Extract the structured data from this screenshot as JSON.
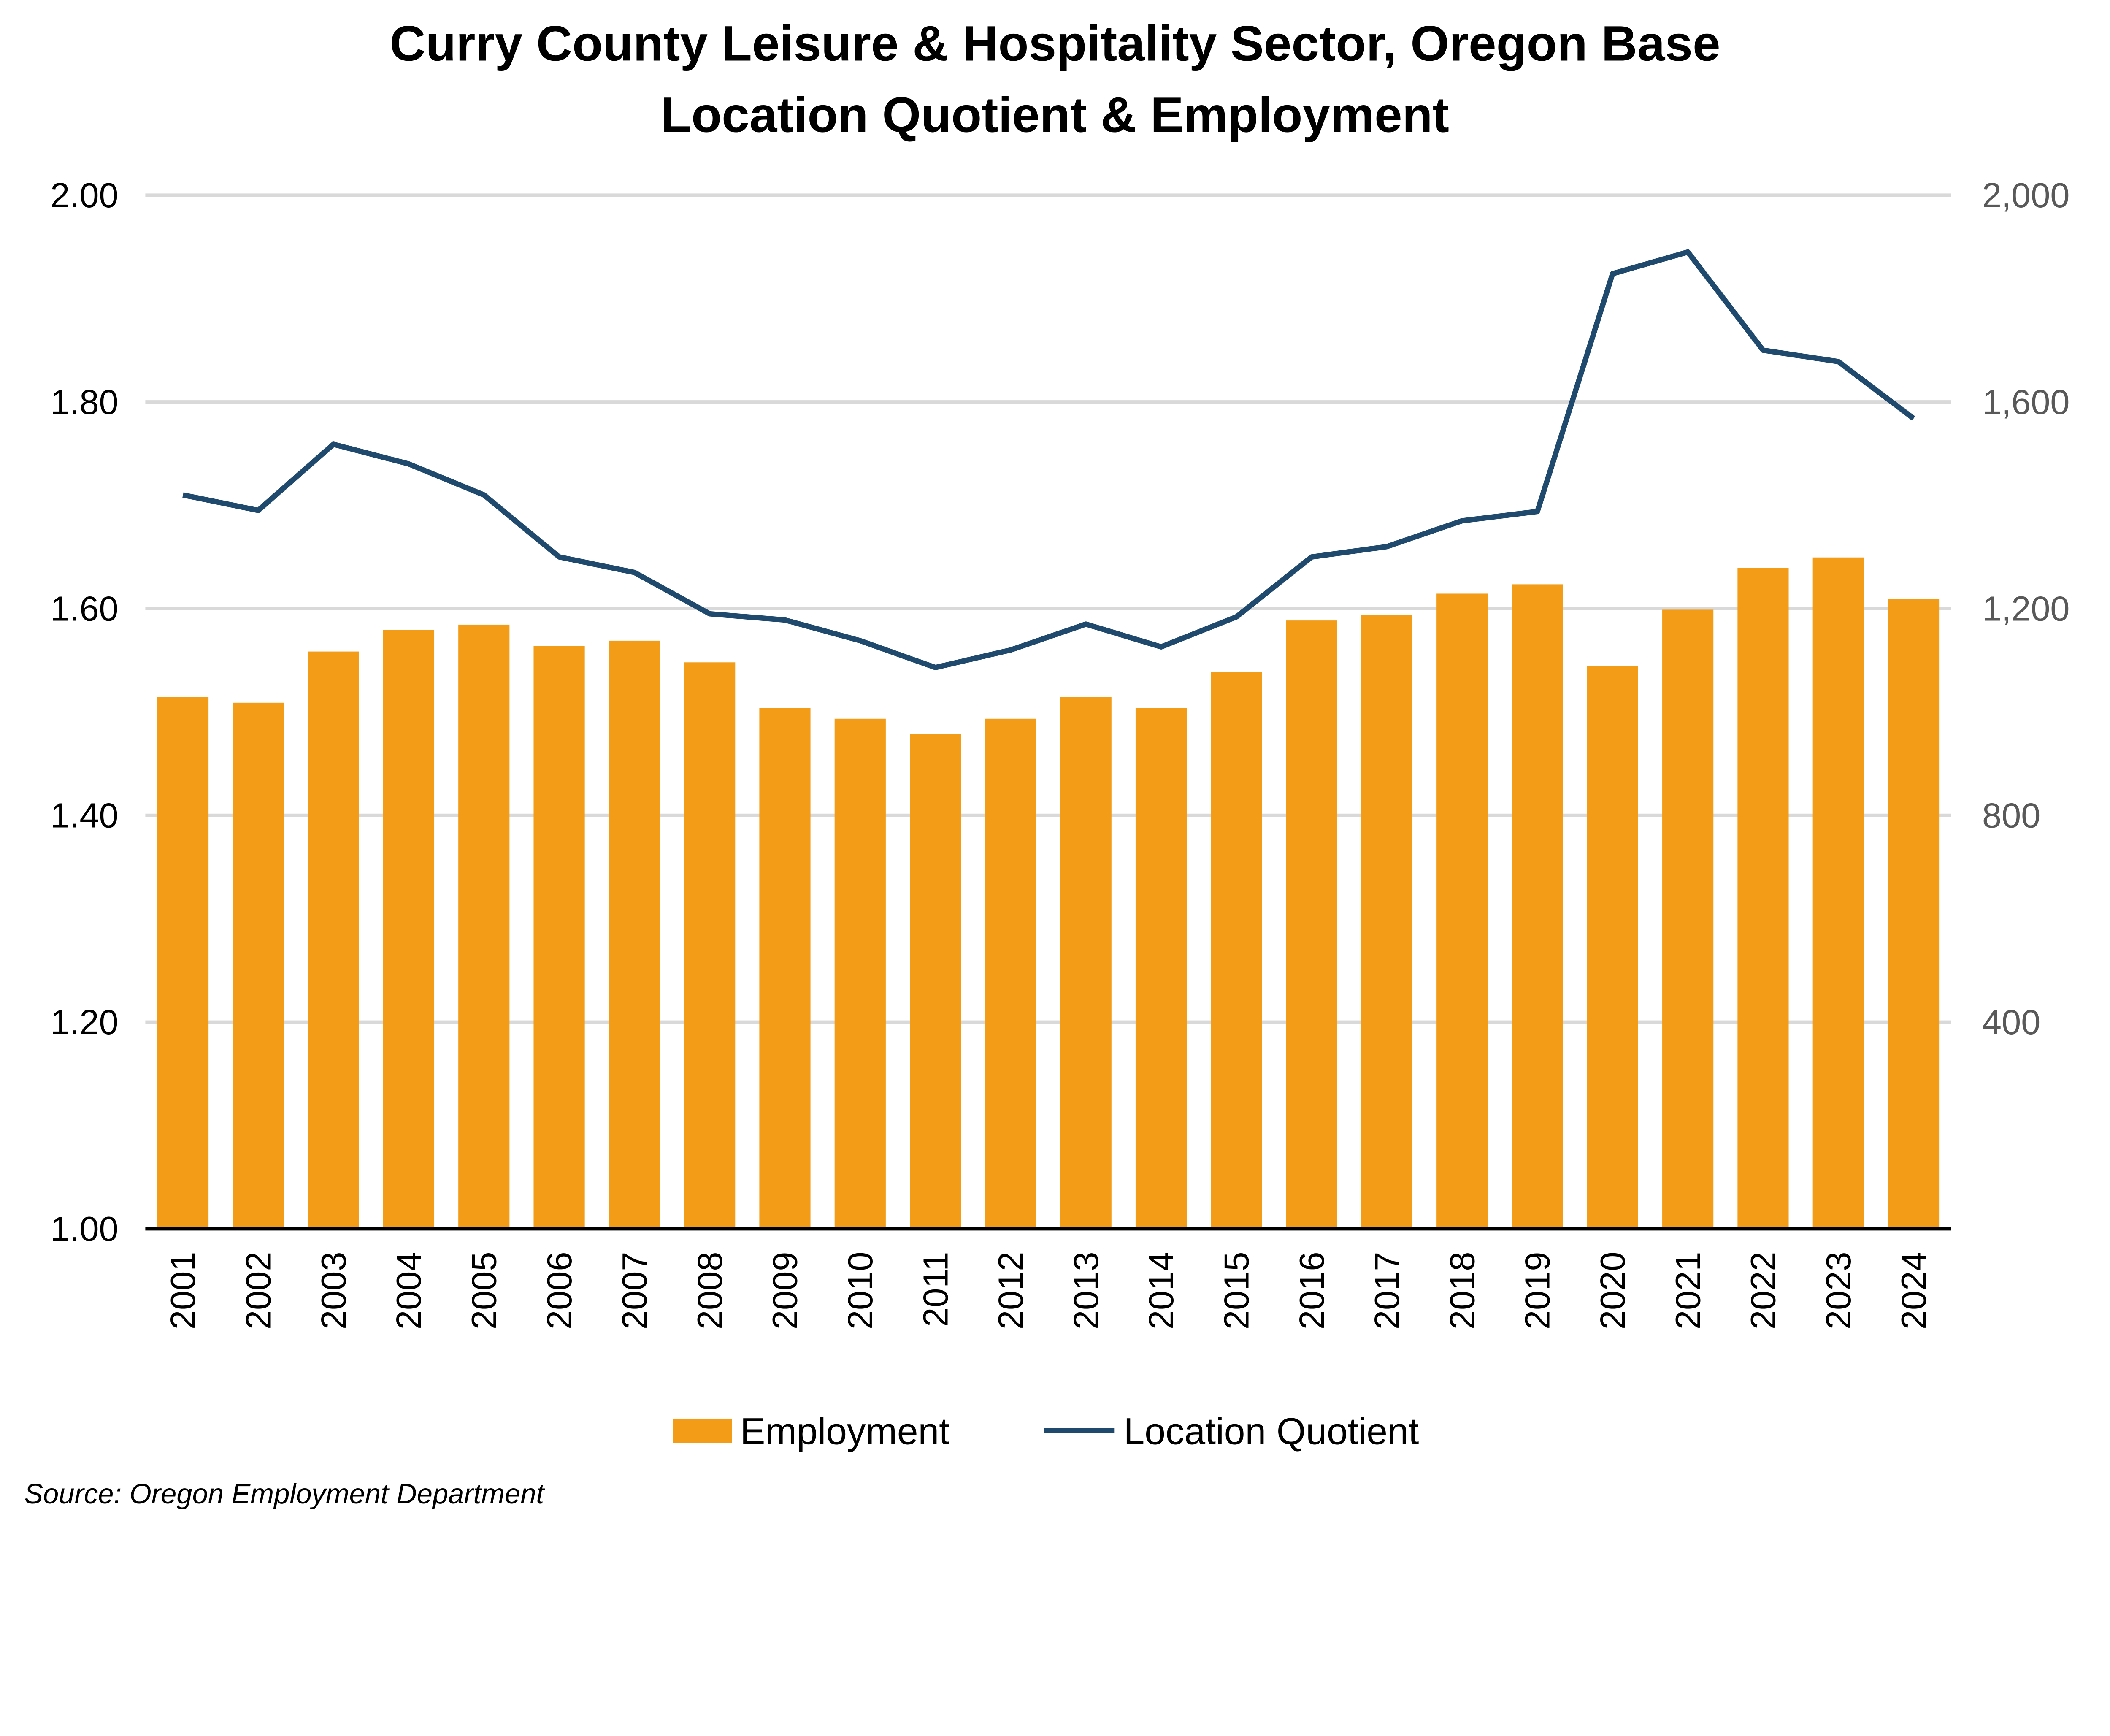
{
  "chart_data": {
    "type": "bar+line",
    "title_line1": "Curry County Leisure & Hospitality Sector, Oregon Base",
    "title_line2": "Location Quotient & Employment",
    "categories": [
      "2001",
      "2002",
      "2003",
      "2004",
      "2005",
      "2006",
      "2007",
      "2008",
      "2009",
      "2010",
      "2011",
      "2012",
      "2013",
      "2014",
      "2015",
      "2016",
      "2017",
      "2018",
      "2019",
      "2020",
      "2021",
      "2022",
      "2023",
      "2024"
    ],
    "series": [
      {
        "name": "Employment",
        "type": "bar",
        "axis": "right",
        "color": "#F39C18",
        "values": [
          1029,
          1018,
          1117,
          1159,
          1169,
          1128,
          1138,
          1096,
          1008,
          987,
          958,
          987,
          1029,
          1008,
          1078,
          1177,
          1187,
          1229,
          1247,
          1089,
          1198,
          1279,
          1299,
          1219
        ]
      },
      {
        "name": "Location Quotient",
        "type": "line",
        "axis": "left",
        "color": "#1F4A6E",
        "values": [
          1.71,
          1.695,
          1.759,
          1.74,
          1.71,
          1.65,
          1.635,
          1.595,
          1.589,
          1.569,
          1.543,
          1.56,
          1.585,
          1.563,
          1.592,
          1.65,
          1.66,
          1.685,
          1.694,
          1.924,
          1.945,
          1.85,
          1.839,
          1.784
        ]
      }
    ],
    "left_axis": {
      "ylim": [
        1.0,
        2.0
      ],
      "ticks": [
        "1.00",
        "1.20",
        "1.40",
        "1.60",
        "1.80",
        "2.00"
      ]
    },
    "right_axis": {
      "ylim": [
        0,
        2000
      ],
      "ticks": [
        "",
        "400",
        "800",
        "1,200",
        "1,600",
        "2,000"
      ]
    },
    "grid": true,
    "legend_placement": "bottom",
    "source": "Source: Oregon Employment Department"
  }
}
